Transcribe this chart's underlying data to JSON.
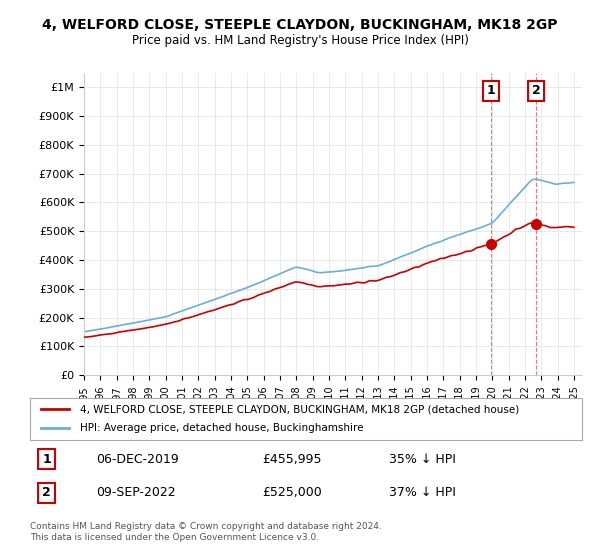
{
  "title": "4, WELFORD CLOSE, STEEPLE CLAYDON, BUCKINGHAM, MK18 2GP",
  "subtitle": "Price paid vs. HM Land Registry's House Price Index (HPI)",
  "ylabel_ticks": [
    "£0",
    "£100K",
    "£200K",
    "£300K",
    "£400K",
    "£500K",
    "£600K",
    "£700K",
    "£800K",
    "£900K",
    "£1M"
  ],
  "ytick_values": [
    0,
    100000,
    200000,
    300000,
    400000,
    500000,
    600000,
    700000,
    800000,
    900000,
    1000000
  ],
  "ylim": [
    0,
    1050000
  ],
  "xlim_start": 1995.0,
  "xlim_end": 2025.5,
  "hpi_color": "#6baed6",
  "price_color": "#cc0000",
  "annotation_box_color": "#cc0000",
  "sale1_x": 2019.92,
  "sale1_y": 455995,
  "sale1_label": "1",
  "sale2_x": 2022.69,
  "sale2_y": 525000,
  "sale2_label": "2",
  "legend_line1": "4, WELFORD CLOSE, STEEPLE CLAYDON, BUCKINGHAM, MK18 2GP (detached house)",
  "legend_line2": "HPI: Average price, detached house, Buckinghamshire",
  "table_row1_num": "1",
  "table_row1_date": "06-DEC-2019",
  "table_row1_price": "£455,995",
  "table_row1_hpi": "35% ↓ HPI",
  "table_row2_num": "2",
  "table_row2_date": "09-SEP-2022",
  "table_row2_price": "£525,000",
  "table_row2_hpi": "37% ↓ HPI",
  "footer": "Contains HM Land Registry data © Crown copyright and database right 2024.\nThis data is licensed under the Open Government Licence v3.0.",
  "background_color": "#ffffff",
  "grid_color": "#e0e0e0"
}
